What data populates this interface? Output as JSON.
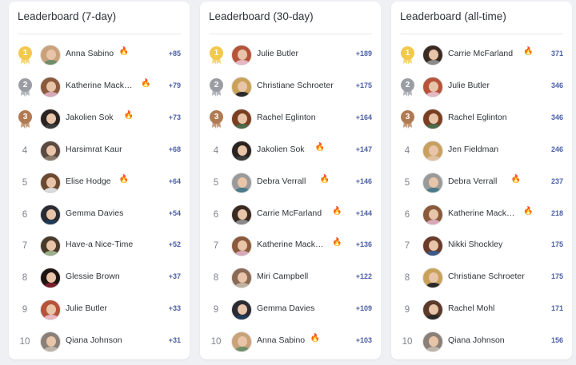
{
  "colors": {
    "gold": "#f2c94c",
    "silver": "#9a9ea4",
    "bronze": "#b07a52",
    "score": "#4b5fa6",
    "fire": "#f06a1d"
  },
  "icons": {
    "streak": "fire-icon",
    "medal": "medal-icon"
  },
  "boards": [
    {
      "title": "Leaderboard (7-day)",
      "rows": [
        {
          "rank": "1",
          "name": "Anna Sabino",
          "fire": true,
          "score": "+85",
          "hair": "#c9a27a",
          "shirt": "#6f8f6a"
        },
        {
          "rank": "2",
          "name": "Katherine Mack…",
          "fire": true,
          "score": "+79",
          "hair": "#8b5a3c",
          "shirt": "#d7a9b8"
        },
        {
          "rank": "3",
          "name": "Jakolien Sok",
          "fire": true,
          "score": "+73",
          "hair": "#2a2321",
          "shirt": "#3b3b3b"
        },
        {
          "rank": "4",
          "name": "Harsimrat Kaur",
          "fire": false,
          "score": "+68",
          "hair": "#5a4a40",
          "shirt": "#8a7a6a"
        },
        {
          "rank": "5",
          "name": "Elise Hodge",
          "fire": true,
          "score": "+64",
          "hair": "#6b4a2f",
          "shirt": "#dcdcdc"
        },
        {
          "rank": "6",
          "name": "Gemma Davies",
          "fire": false,
          "score": "+54",
          "hair": "#2b2b33",
          "shirt": "#1f3b57"
        },
        {
          "rank": "7",
          "name": "Have-a Nice-Time",
          "fire": false,
          "score": "+52",
          "hair": "#4a3a2a",
          "shirt": "#9bb08a"
        },
        {
          "rank": "8",
          "name": "Glessie Brown",
          "fire": false,
          "score": "+37",
          "hair": "#1e1512",
          "shirt": "#7a1f2a"
        },
        {
          "rank": "9",
          "name": "Julie Butler",
          "fire": false,
          "score": "+33",
          "hair": "#b5543a",
          "shirt": "#e7b7c4"
        },
        {
          "rank": "10",
          "name": "Qiana Johnson",
          "fire": false,
          "score": "+31",
          "hair": "#8a8078",
          "shirt": "#bfb5ab"
        }
      ]
    },
    {
      "title": "Leaderboard (30-day)",
      "rows": [
        {
          "rank": "1",
          "name": "Julie Butler",
          "fire": false,
          "score": "+189",
          "hair": "#b5543a",
          "shirt": "#e7b7c4"
        },
        {
          "rank": "2",
          "name": "Christiane Schroeter",
          "fire": false,
          "score": "+175",
          "hair": "#c9a25a",
          "shirt": "#2a2a2a"
        },
        {
          "rank": "3",
          "name": "Rachel Eglinton",
          "fire": false,
          "score": "+164",
          "hair": "#7a3f22",
          "shirt": "#4a6a4a"
        },
        {
          "rank": "4",
          "name": "Jakolien Sok",
          "fire": true,
          "score": "+147",
          "hair": "#2a2321",
          "shirt": "#3b3b3b"
        },
        {
          "rank": "5",
          "name": "Debra Verrall",
          "fire": true,
          "score": "+146",
          "hair": "#9a9a9a",
          "shirt": "#4a7a8a"
        },
        {
          "rank": "6",
          "name": "Carrie McFarland",
          "fire": true,
          "score": "+144",
          "hair": "#3a2a22",
          "shirt": "#8a8a8a"
        },
        {
          "rank": "7",
          "name": "Katherine Mack…",
          "fire": true,
          "score": "+136",
          "hair": "#8b5a3c",
          "shirt": "#d7a9b8"
        },
        {
          "rank": "8",
          "name": "Miri Campbell",
          "fire": false,
          "score": "+122",
          "hair": "#8a6a55",
          "shirt": "#c0b0a0"
        },
        {
          "rank": "9",
          "name": "Gemma Davies",
          "fire": false,
          "score": "+109",
          "hair": "#2b2b33",
          "shirt": "#1f3b57"
        },
        {
          "rank": "10",
          "name": "Anna Sabino",
          "fire": true,
          "score": "+103",
          "hair": "#c9a27a",
          "shirt": "#6f8f6a"
        }
      ]
    },
    {
      "title": "Leaderboard (all-time)",
      "rows": [
        {
          "rank": "1",
          "name": "Carrie McFarland",
          "fire": true,
          "score": "371",
          "hair": "#3a2a22",
          "shirt": "#8a8a8a"
        },
        {
          "rank": "2",
          "name": "Julie Butler",
          "fire": false,
          "score": "346",
          "hair": "#b5543a",
          "shirt": "#e7b7c4"
        },
        {
          "rank": "3",
          "name": "Rachel Eglinton",
          "fire": false,
          "score": "346",
          "hair": "#7a3f22",
          "shirt": "#4a6a4a"
        },
        {
          "rank": "4",
          "name": "Jen Fieldman",
          "fire": false,
          "score": "246",
          "hair": "#c8a060",
          "shirt": "#e0c0a0"
        },
        {
          "rank": "5",
          "name": "Debra Verrall",
          "fire": true,
          "score": "237",
          "hair": "#9a9a9a",
          "shirt": "#4a7a8a"
        },
        {
          "rank": "6",
          "name": "Katherine Mack…",
          "fire": true,
          "score": "218",
          "hair": "#8b5a3c",
          "shirt": "#d7a9b8"
        },
        {
          "rank": "7",
          "name": "Nikki Shockley",
          "fire": false,
          "score": "175",
          "hair": "#6a3a2a",
          "shirt": "#3a5a8a"
        },
        {
          "rank": "8",
          "name": "Christiane Schroeter",
          "fire": false,
          "score": "175",
          "hair": "#c9a25a",
          "shirt": "#2a2a2a"
        },
        {
          "rank": "9",
          "name": "Rachel Mohl",
          "fire": false,
          "score": "171",
          "hair": "#5a3a2a",
          "shirt": "#2a2a2a"
        },
        {
          "rank": "10",
          "name": "Qiana Johnson",
          "fire": false,
          "score": "156",
          "hair": "#8a8078",
          "shirt": "#bfb5ab"
        }
      ]
    }
  ]
}
